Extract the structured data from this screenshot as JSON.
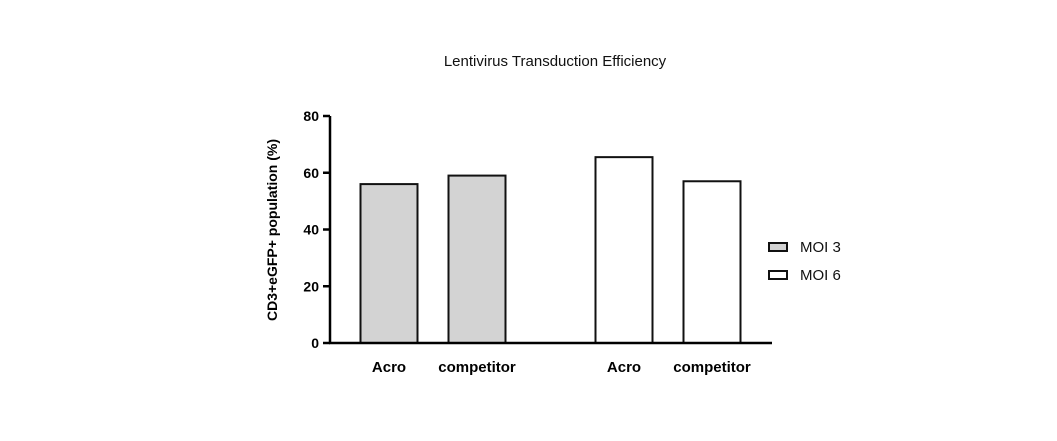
{
  "chart_data": {
    "type": "bar",
    "title": "Lentivirus Transduction Efficiency",
    "xlabel": "",
    "ylabel": "CD3+eGFP+ population (%)",
    "ylim": [
      0,
      80
    ],
    "yticks": [
      0,
      20,
      40,
      60,
      80
    ],
    "grid": false,
    "legend_position": "right",
    "categories": [
      "Acro",
      "competitor",
      "Acro",
      "competitor"
    ],
    "series": [
      {
        "name": "MOI 3",
        "color": "#d3d3d3",
        "values": [
          56,
          59,
          null,
          null
        ]
      },
      {
        "name": "MOI 6",
        "color": "#ffffff",
        "values": [
          null,
          null,
          65.5,
          57
        ]
      }
    ]
  }
}
